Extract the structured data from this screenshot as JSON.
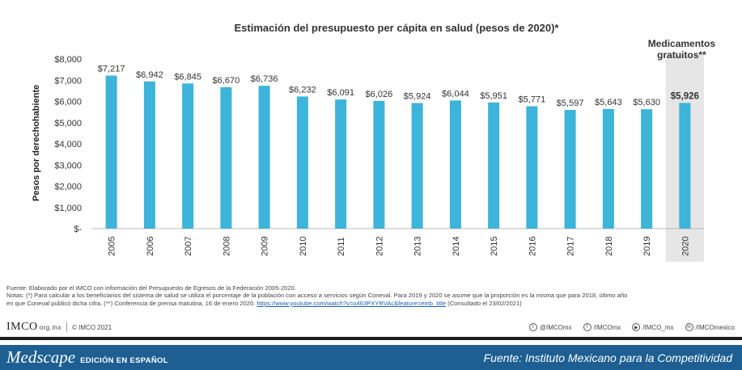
{
  "chart_data": {
    "type": "bar",
    "title": "Estimación del presupuesto per cápita en salud (pesos de 2020)*",
    "ylabel": "Pesos por derechohabiente",
    "xlabel": "",
    "ylim": [
      0,
      8000
    ],
    "yticks": [
      "$8,000",
      "$7,000",
      "$6,000",
      "$5,000",
      "$4,000",
      "$3,000",
      "$2,000",
      "$1,000",
      "$-"
    ],
    "categories": [
      "2005",
      "2006",
      "2007",
      "2008",
      "2009",
      "2010",
      "2011",
      "2012",
      "2013",
      "2014",
      "2015",
      "2016",
      "2017",
      "2018",
      "2019",
      "2020"
    ],
    "values": [
      7217,
      6942,
      6845,
      6670,
      6736,
      6232,
      6091,
      6026,
      5924,
      6044,
      5951,
      5771,
      5597,
      5643,
      5630,
      5926
    ],
    "labels": [
      "$7,217",
      "$6,942",
      "$6,845",
      "$6,670",
      "$6,736",
      "$6,232",
      "$6,091",
      "$6,026",
      "$5,924",
      "$6,044",
      "$5,951",
      "$5,771",
      "$5,597",
      "$5,643",
      "$5,630",
      "$5,926"
    ],
    "highlight_label": "Medicamentos gratuitos**",
    "highlight_index": 15,
    "bar_color": "#3db4d9",
    "highlight_bg": "#e6e6e6",
    "grid": false
  },
  "notes": {
    "source_line": "Fuente: Elaborado por el IMCO con información del Presupuesto de Egresos de la Federación 2005-2020.",
    "notes_line_1": "Notas: (*) Para calcular a los beneficiarios del sistema de salud se utiliza el porcentaje de la población con acceso a servicios según Coneval. Para 2019 y 2020 se asume que la proporción es la misma que para 2018, último año",
    "notes_line_2": "en que Coneval publicó dicha cifra. (**) Conferencia de prensa matutina, 16 de enero 2020.",
    "link": "https://www.youtube.com/watch?v=o463PXYRVAc&feature=emb_title",
    "consulted": "(Consultado el  23/02/2021)"
  },
  "imco": {
    "logo": "IMCO",
    "domain": "org.mx",
    "copyright": "© IMCO 2021",
    "socials": [
      {
        "icon": "twitter-icon",
        "glyph": "t",
        "handle": "@IMCOmx"
      },
      {
        "icon": "facebook-icon",
        "glyph": "f",
        "handle": "/IMCOmx"
      },
      {
        "icon": "youtube-icon",
        "glyph": "▶",
        "handle": "/IMCO_mx"
      },
      {
        "icon": "linkedin-icon",
        "glyph": "in",
        "handle": "/IMCOmexico"
      }
    ]
  },
  "footer": {
    "brand": "Medscape",
    "edition": "EDICIÓN EN ESPAÑOL",
    "source": "Fuente: Instituto Mexicano para la Competitividad"
  }
}
